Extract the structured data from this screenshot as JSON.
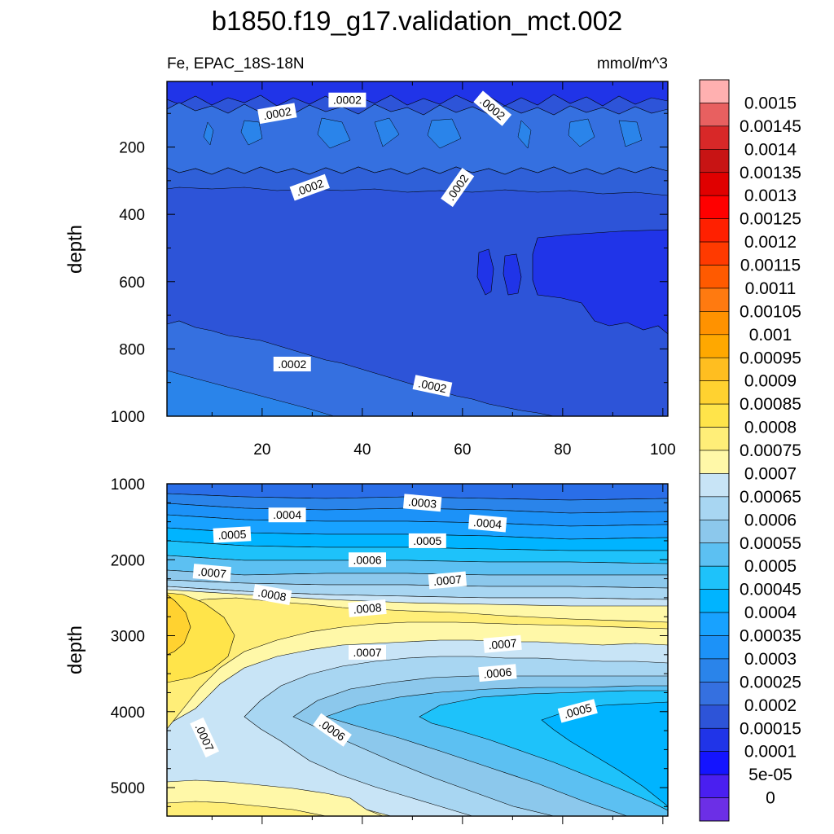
{
  "title": "b1850.f19_g17.validation_mct.002",
  "chart_data": {
    "type": "heatmap",
    "title": "b1850.f19_g17.validation_mct.002",
    "subtitle_left": "Fe, EPAC_18S-18N",
    "subtitle_right": "mmol/m^3",
    "colorbar": {
      "levels": [
        "0",
        "5e-05",
        "0.0001",
        "0.00015",
        "0.0002",
        "0.00025",
        "0.0003",
        "0.00035",
        "0.0004",
        "0.00045",
        "0.0005",
        "0.00055",
        "0.0006",
        "0.00065",
        "0.0007",
        "0.00075",
        "0.0008",
        "0.00085",
        "0.0009",
        "0.00095",
        "0.001",
        "0.00105",
        "0.0011",
        "0.00115",
        "0.0012",
        "0.00125",
        "0.0013",
        "0.00135",
        "0.0014",
        "0.00145",
        "0.0015"
      ],
      "colors": [
        "#6c2fe6",
        "#4a1ff0",
        "#1414ff",
        "#2034e8",
        "#2d54d8",
        "#3570e0",
        "#2a84ea",
        "#1c92f8",
        "#18a2ff",
        "#00b4ff",
        "#1ec2fa",
        "#5cc0f2",
        "#8cc8ec",
        "#a8d6f2",
        "#c8e4f6",
        "#fff8a8",
        "#ffee78",
        "#ffe44a",
        "#ffd230",
        "#ffbe20",
        "#ffa800",
        "#ff9200",
        "#ff7a10",
        "#ff5a00",
        "#ff3a00",
        "#ff2000",
        "#ff0000",
        "#e00000",
        "#c81414",
        "#d82828",
        "#e86060",
        "#ffb0b0"
      ]
    },
    "panels": [
      {
        "name": "upper",
        "xlabel": "",
        "ylabel": "depth",
        "xlim": [
          1,
          101
        ],
        "ylim": [
          1000,
          5
        ],
        "xticks": [
          20,
          40,
          60,
          80,
          100
        ],
        "yticks": [
          200,
          400,
          600,
          800,
          1000
        ],
        "contour_labels": [
          {
            "text": ".0002",
            "x": 23,
            "y": 100,
            "angle": -10
          },
          {
            "text": ".0002",
            "x": 37,
            "y": 60,
            "angle": 0
          },
          {
            "text": ".0002",
            "x": 66,
            "y": 85,
            "angle": 40
          },
          {
            "text": ".0002",
            "x": 29.5,
            "y": 320,
            "angle": -20
          },
          {
            "text": ".0002",
            "x": 59,
            "y": 320,
            "angle": -55
          },
          {
            "text": ".0002",
            "x": 26,
            "y": 845,
            "angle": 0
          },
          {
            "text": ".0002",
            "x": 54,
            "y": 910,
            "angle": 12
          }
        ]
      },
      {
        "name": "lower",
        "xlabel": "",
        "ylabel": "depth",
        "xlim": [
          1,
          101
        ],
        "ylim": [
          5375,
          1000
        ],
        "yticks": [
          1000,
          2000,
          3000,
          4000,
          5000
        ],
        "contour_labels": [
          {
            "text": ".0003",
            "x": 52,
            "y": 1250,
            "angle": 5
          },
          {
            "text": ".0004",
            "x": 25,
            "y": 1410,
            "angle": 0
          },
          {
            "text": ".0004",
            "x": 65,
            "y": 1520,
            "angle": 5
          },
          {
            "text": ".0005",
            "x": 14,
            "y": 1670,
            "angle": -3
          },
          {
            "text": ".0005",
            "x": 53,
            "y": 1750,
            "angle": 0
          },
          {
            "text": ".0006",
            "x": 41,
            "y": 2000,
            "angle": 0
          },
          {
            "text": ".0007",
            "x": 10,
            "y": 2170,
            "angle": 5
          },
          {
            "text": ".0007",
            "x": 57,
            "y": 2270,
            "angle": -5
          },
          {
            "text": ".0008",
            "x": 22,
            "y": 2460,
            "angle": 10
          },
          {
            "text": ".0008",
            "x": 41,
            "y": 2640,
            "angle": -5
          },
          {
            "text": ".0007",
            "x": 41,
            "y": 3220,
            "angle": 0
          },
          {
            "text": ".0007",
            "x": 68,
            "y": 3110,
            "angle": -5
          },
          {
            "text": ".0006",
            "x": 67,
            "y": 3490,
            "angle": -5
          },
          {
            "text": ".0006",
            "x": 34,
            "y": 4240,
            "angle": 35
          },
          {
            "text": ".0007",
            "x": 8.5,
            "y": 4340,
            "angle": 65
          },
          {
            "text": ".0005",
            "x": 83,
            "y": 3990,
            "angle": -15
          }
        ]
      }
    ]
  }
}
